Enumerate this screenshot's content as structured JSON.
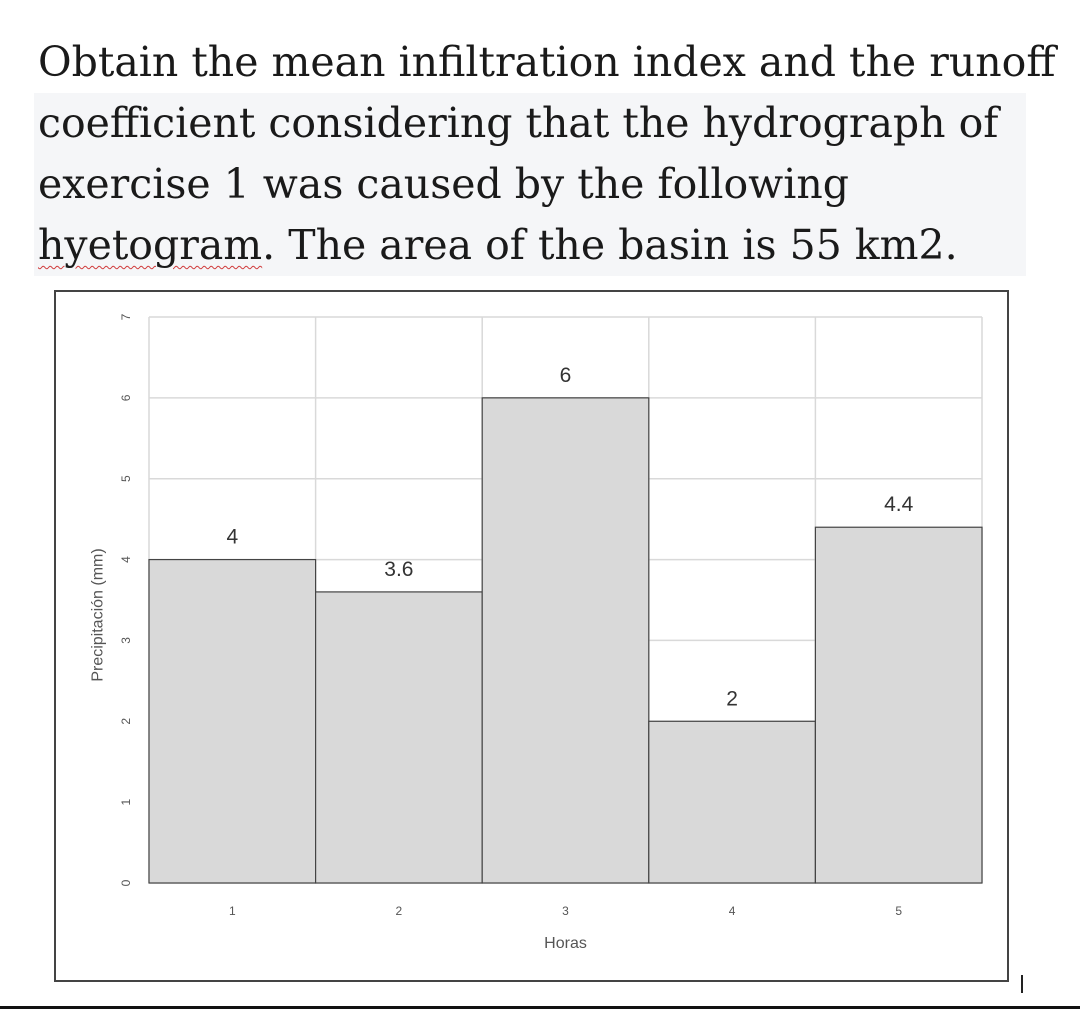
{
  "problem": {
    "line1": "Obtain the mean infiltration index and the runoff",
    "line2": "coefficient considering that the hydrograph of",
    "line3": "exercise 1 was caused by the following",
    "line4_word": "hyetogram",
    "line4_rest": ". The area of the basin is 55 km2."
  },
  "chart_data": {
    "type": "bar",
    "categories": [
      "1",
      "2",
      "3",
      "4",
      "5"
    ],
    "values": [
      4,
      3.6,
      6,
      2,
      4.4
    ],
    "data_labels": [
      "4",
      "3.6",
      "6",
      "2",
      "4.4"
    ],
    "xlabel": "Horas",
    "ylabel": "Precipitación (mm)",
    "ylim": [
      0,
      7
    ],
    "yticks": [
      "0",
      "1",
      "2",
      "3",
      "4",
      "5",
      "6",
      "7"
    ],
    "grid": true,
    "bar_color": "#d9d9d9",
    "bar_edge_color": "#444444",
    "grid_color": "#d9d9d9"
  }
}
